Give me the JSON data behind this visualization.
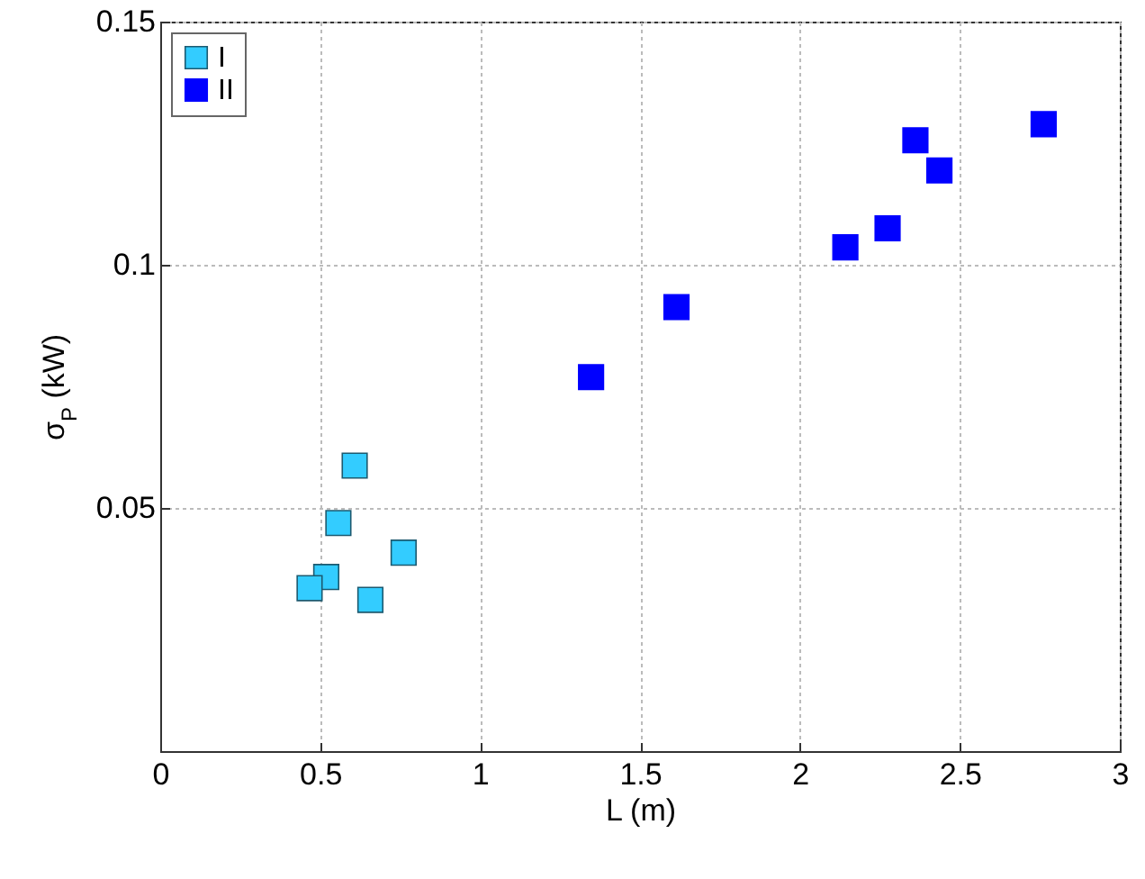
{
  "chart_data": {
    "type": "scatter",
    "xlabel": "L (m)",
    "ylabel": "σ$_{P}$ (kW)",
    "xlim": [
      0,
      3
    ],
    "xticks": [
      0,
      0.5,
      1,
      1.5,
      2,
      2.5,
      3
    ],
    "ylim": [
      0,
      0.15
    ],
    "yticks": [
      0.05,
      0.1,
      0.15
    ],
    "grid": true,
    "legend": "top left",
    "marker": "square",
    "series": [
      {
        "name": "I",
        "color": "#33ccff",
        "x": [
          0.608,
          0.557,
          0.761,
          0.519,
          0.467,
          0.657
        ],
        "values": [
          0.0587,
          0.0469,
          0.0408,
          0.0358,
          0.0335,
          0.0311
        ]
      },
      {
        "name": "II",
        "color": "#0000ff",
        "x": [
          1.347,
          1.614,
          2.142,
          2.274,
          2.361,
          2.436,
          2.762
        ],
        "values": [
          0.0769,
          0.0913,
          0.1036,
          0.1075,
          0.1256,
          0.1194,
          0.1289
        ]
      }
    ]
  }
}
